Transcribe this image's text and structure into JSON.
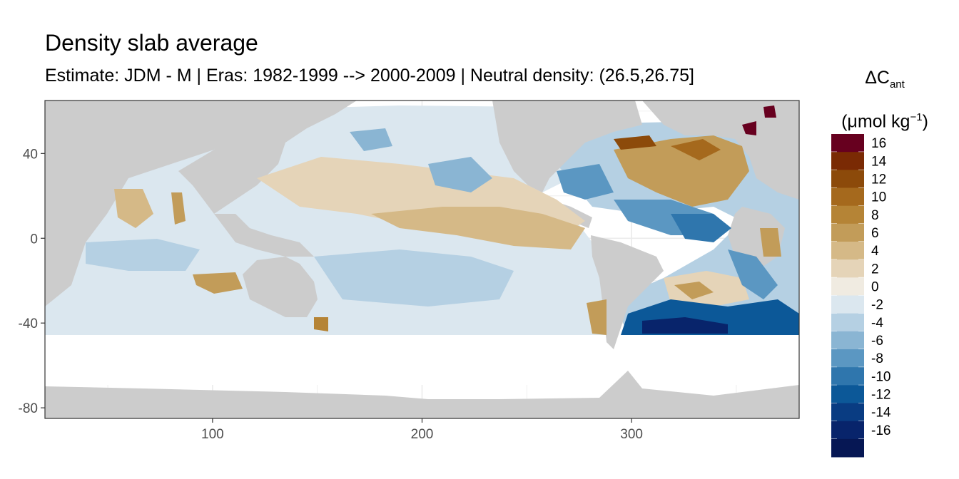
{
  "chart_data": {
    "type": "heatmap",
    "title": "Density slab average",
    "subtitle": "Estimate: JDM - M | Eras: 1982-1999 --> 2000-2009 | Neutral density: (26.5,26.75]",
    "xlabel": "",
    "ylabel": "",
    "xlim": [
      20,
      380
    ],
    "ylim": [
      -85,
      65
    ],
    "x_ticks": [
      100,
      200,
      300
    ],
    "y_ticks": [
      40,
      0,
      -40,
      -80
    ],
    "grid": true,
    "legend": {
      "placement": "right",
      "title": "ΔC",
      "title_sub": "ant",
      "units_prefix": "(μmol kg",
      "units_sup": "−1",
      "units_suffix": ")",
      "bins": [
        {
          "label": "16",
          "color": "#67001f"
        },
        {
          "label": "14",
          "color": "#7a2a04"
        },
        {
          "label": "12",
          "color": "#8c4a0a"
        },
        {
          "label": "10",
          "color": "#a5691d"
        },
        {
          "label": "8",
          "color": "#b58436"
        },
        {
          "label": "6",
          "color": "#c29c59"
        },
        {
          "label": "4",
          "color": "#d5b987"
        },
        {
          "label": "2",
          "color": "#e5d4b8"
        },
        {
          "label": "0",
          "color": "#f0ebe1"
        },
        {
          "label": "-2",
          "color": "#dbe7ef"
        },
        {
          "label": "-4",
          "color": "#b5d0e3"
        },
        {
          "label": "-6",
          "color": "#8ab5d3"
        },
        {
          "label": "-8",
          "color": "#5b97c2"
        },
        {
          "label": "-10",
          "color": "#2f76ad"
        },
        {
          "label": "-12",
          "color": "#0c5898"
        },
        {
          "label": "-14",
          "color": "#093c82"
        },
        {
          "label": "-16",
          "color": "#08246b"
        },
        {
          "label": "",
          "color": "#061754"
        }
      ]
    },
    "colors": {
      "land": "#cccccc",
      "no_data": "#ffffff",
      "grid": "#ebebeb",
      "panel_border": "#333333"
    }
  }
}
